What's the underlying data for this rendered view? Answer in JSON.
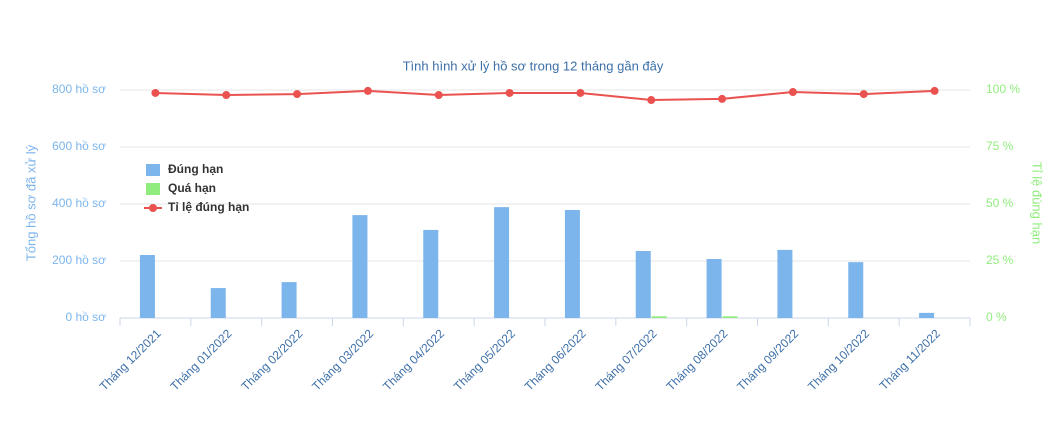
{
  "chart_data": {
    "type": "bar_line",
    "title": "Tình hình xử lý hồ sơ trong 12 tháng gần đây",
    "y_label": "Tổng hồ sơ đã xử lý",
    "y2_label": "Tỉ lệ đúng hạn",
    "categories": [
      "Tháng 12/2021",
      "Tháng 01/2022",
      "Tháng 02/2022",
      "Tháng 03/2022",
      "Tháng 04/2022",
      "Tháng 05/2022",
      "Tháng 06/2022",
      "Tháng 07/2022",
      "Tháng 08/2022",
      "Tháng 09/2022",
      "Tháng 10/2022",
      "Tháng 11/2022"
    ],
    "series": [
      {
        "name": "Đúng hạn",
        "type": "bar",
        "color": "#7cb5ec",
        "values": [
          221,
          105,
          126,
          361,
          309,
          389,
          379,
          235,
          207,
          239,
          196,
          18
        ]
      },
      {
        "name": "Quá hạn",
        "type": "bar",
        "color": "#90ed7d",
        "values": [
          0,
          0,
          0,
          0,
          0,
          0,
          0,
          6,
          6,
          0,
          0,
          0
        ]
      },
      {
        "name": "Tỉ lệ đúng hạn",
        "type": "line",
        "axis": "y2",
        "color": "#e9524f",
        "values": [
          98.7,
          97.8,
          98.2,
          99.6,
          97.8,
          98.7,
          98.7,
          95.6,
          96.1,
          99.1,
          98.2,
          99.6
        ]
      }
    ],
    "ylim": [
      0,
      800
    ],
    "yticks": [
      {
        "value": 0,
        "label": "0 hồ sơ"
      },
      {
        "value": 200,
        "label": "200 hồ sơ"
      },
      {
        "value": 400,
        "label": "400 hồ sơ"
      },
      {
        "value": 600,
        "label": "600 hồ sơ"
      },
      {
        "value": 800,
        "label": "800 hồ sơ"
      }
    ],
    "y2lim": [
      0,
      100
    ],
    "y2ticks": [
      {
        "value": 0,
        "label": "0 %"
      },
      {
        "value": 25,
        "label": "25 %"
      },
      {
        "value": 50,
        "label": "50 %"
      },
      {
        "value": 75,
        "label": "75 %"
      },
      {
        "value": 100,
        "label": "100 %"
      }
    ],
    "grid": true,
    "legend": "upper left"
  }
}
